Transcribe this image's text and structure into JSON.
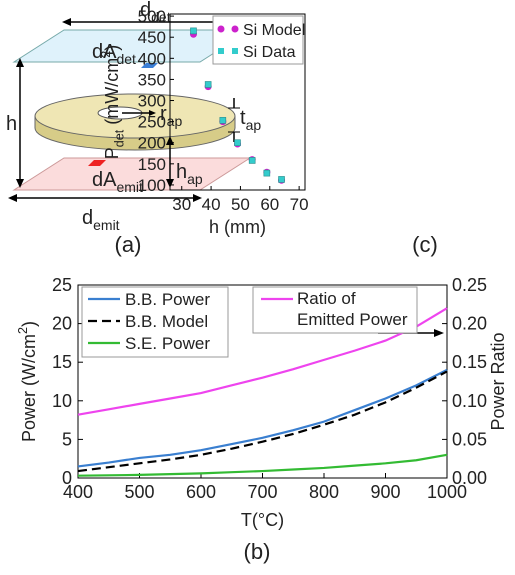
{
  "diagram": {
    "labels": [
      {
        "main": "d",
        "sub": "det"
      },
      {
        "main": "dA",
        "sub": "det"
      },
      {
        "main": "h",
        "sub": ""
      },
      {
        "main": "r",
        "sub": "ap"
      },
      {
        "main": "t",
        "sub": "ap"
      },
      {
        "main": "dA",
        "sub": "emit"
      },
      {
        "main": "h",
        "sub": "ap"
      },
      {
        "main": "d",
        "sub": "emit"
      }
    ],
    "panel": "(a)"
  },
  "chart_data": [
    {
      "type": "scatter",
      "panel": "(c)",
      "xlabel": [
        {
          "text": "h (mm)",
          "style": "normal"
        }
      ],
      "ylabel": [
        {
          "text": "P",
          "style": "normal"
        },
        {
          "text": "det",
          "style": "sub"
        },
        {
          "text": " (mW/cm",
          "style": "normal"
        },
        {
          "text": "2",
          "style": "sup"
        },
        {
          "text": ")",
          "style": "normal"
        }
      ],
      "x": [
        34,
        39,
        44,
        49,
        54,
        59,
        64
      ],
      "series": [
        {
          "name": "Si Model",
          "color": "#cc22cc",
          "marker": "circle",
          "values": [
            457,
            333,
            250,
            197,
            160,
            130,
            111
          ]
        },
        {
          "name": "Si Data",
          "color": "#33cccc",
          "marker": "square",
          "values": [
            465,
            338,
            253,
            200,
            158,
            128,
            113
          ]
        }
      ],
      "xlim": [
        26,
        72
      ],
      "xticks": [
        30,
        40,
        50,
        60,
        70
      ],
      "ylim": [
        88,
        505
      ],
      "yticks": [
        100,
        150,
        200,
        250,
        300,
        350,
        400,
        450,
        500
      ],
      "legend": "upper right"
    },
    {
      "type": "line",
      "panel": "(b)",
      "xlabel": [
        {
          "text": "T(°C)",
          "style": "normal"
        }
      ],
      "ylabel": [
        {
          "text": "Power (W/cm",
          "style": "normal"
        },
        {
          "text": "2",
          "style": "sup"
        },
        {
          "text": ")",
          "style": "normal"
        }
      ],
      "y2label": [
        {
          "text": "Power Ratio",
          "style": "normal"
        }
      ],
      "x": [
        400,
        450,
        500,
        550,
        600,
        650,
        700,
        750,
        800,
        850,
        900,
        950,
        1000
      ],
      "series": [
        {
          "name": "B.B. Power",
          "color": "#3a7fd0",
          "linestyle": "solid",
          "axis": "y",
          "values": [
            1.5,
            2.0,
            2.6,
            3.0,
            3.6,
            4.4,
            5.2,
            6.2,
            7.3,
            8.8,
            10.3,
            12.0,
            14.0
          ]
        },
        {
          "name": "B.B. Model",
          "color": "#000000",
          "linestyle": "dashed",
          "axis": "y",
          "values": [
            0.9,
            1.4,
            1.9,
            2.4,
            3.0,
            3.8,
            4.7,
            5.7,
            6.9,
            8.2,
            9.8,
            11.7,
            13.8
          ]
        },
        {
          "name": "S.E. Power",
          "color": "#33bb33",
          "linestyle": "solid",
          "axis": "y",
          "values": [
            0.3,
            0.35,
            0.4,
            0.5,
            0.6,
            0.75,
            0.9,
            1.1,
            1.3,
            1.6,
            1.9,
            2.3,
            3.0
          ]
        },
        {
          "name": "Ratio of Emitted Power",
          "color": "#ee44ee",
          "linestyle": "solid",
          "axis": "y2",
          "values": [
            0.082,
            0.089,
            0.096,
            0.103,
            0.11,
            0.12,
            0.13,
            0.141,
            0.153,
            0.165,
            0.178,
            0.196,
            0.22
          ]
        }
      ],
      "xlim": [
        400,
        1000
      ],
      "xticks": [
        400,
        500,
        600,
        700,
        800,
        900,
        1000
      ],
      "ylim": [
        0,
        25
      ],
      "yticks": [
        0,
        5,
        10,
        15,
        20,
        25
      ],
      "y2lim": [
        0,
        0.25
      ],
      "y2ticks": [
        {
          "value": 0,
          "label": "0.00"
        },
        {
          "value": 0.05,
          "label": "0.05"
        },
        {
          "value": 0.1,
          "label": "0.10"
        },
        {
          "value": 0.15,
          "label": "0.15"
        },
        {
          "value": 0.2,
          "label": "0.20"
        },
        {
          "value": 0.25,
          "label": "0.25"
        }
      ]
    }
  ]
}
